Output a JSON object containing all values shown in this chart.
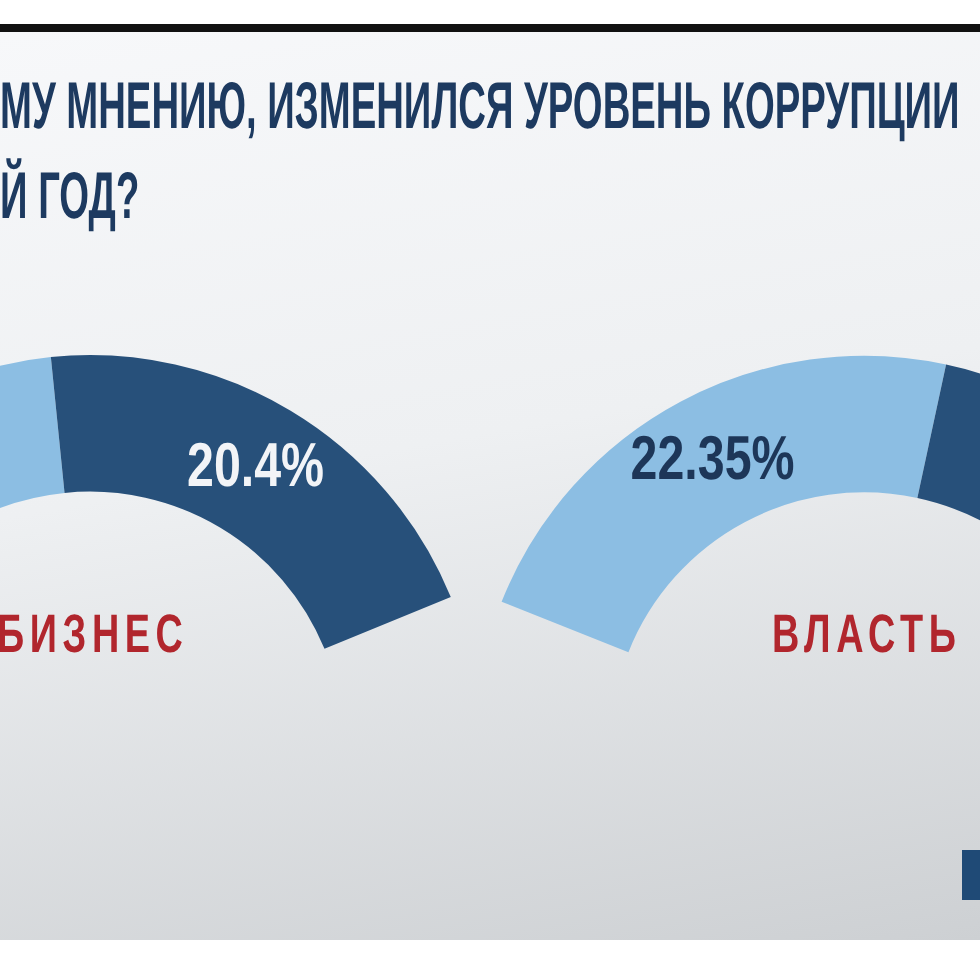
{
  "chart_data": [
    {
      "type": "donut",
      "title": "МУ МНЕНИЮ, ИЗМЕНИЛСЯ УРОВЕНЬ КОРРУПЦИИ\nЙ ГОД?",
      "xlabel": "БИЗНЕС",
      "categories": [
        null,
        null
      ],
      "values": [
        17.2,
        20.4
      ],
      "colors": [
        "#8cbee3",
        "#27507a"
      ],
      "value_labels": [
        null,
        "20.4%"
      ]
    },
    {
      "type": "donut",
      "xlabel": "ВЛАСТЬ",
      "categories": [
        null,
        null
      ],
      "values": [
        22.35,
        15.6
      ],
      "colors": [
        "#8cbee3",
        "#27507a"
      ],
      "value_labels": [
        "22.35%",
        null
      ]
    }
  ]
}
